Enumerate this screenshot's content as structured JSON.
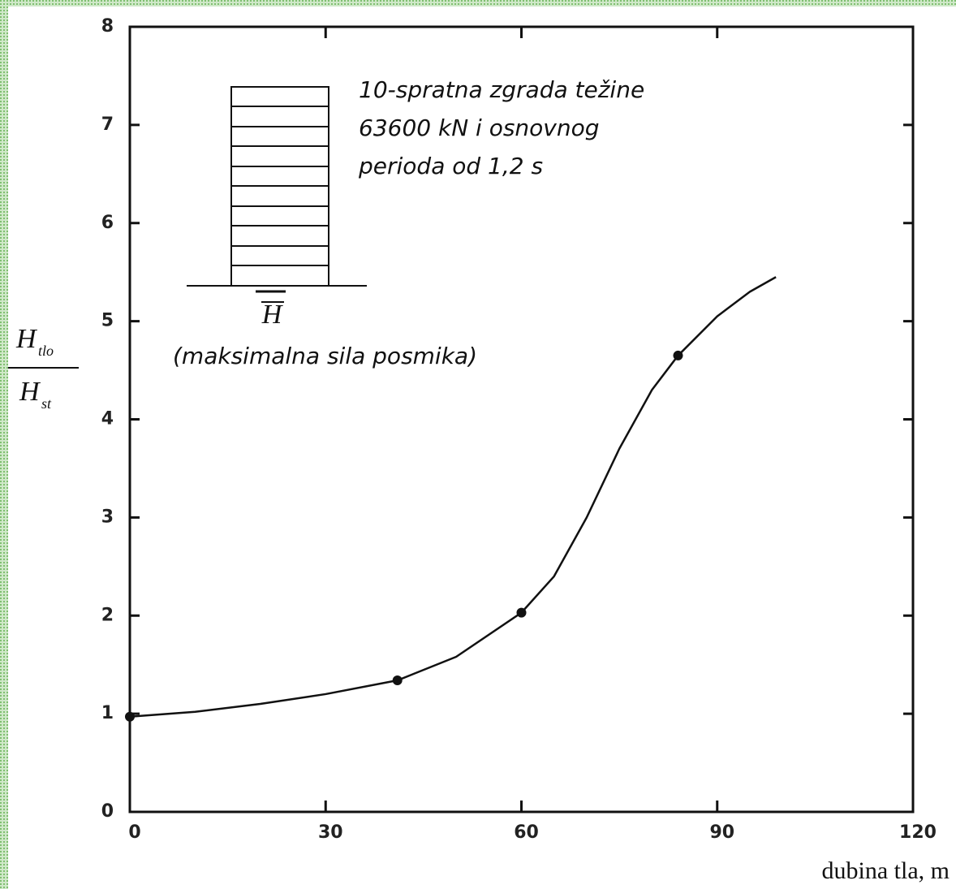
{
  "chart_data": {
    "type": "line",
    "annotation": [
      "10-spratna zgrada težine",
      "63600 kN i osnovnog",
      "perioda od 1,2 s"
    ],
    "figure_label": "H",
    "figure_caption": "(maksimalna sila posmika)",
    "ylabel": {
      "numerator": "H",
      "numerator_sub": "tlo",
      "denominator": "H",
      "denominator_sub": "st"
    },
    "xlabel": "dubina tla, m",
    "xlim": [
      0,
      120
    ],
    "xticks": [
      0,
      30,
      60,
      90,
      120
    ],
    "ylim": [
      0,
      8
    ],
    "yticks": [
      0,
      1,
      2,
      3,
      4,
      5,
      6,
      7,
      8
    ],
    "color": "#111111",
    "series": [
      {
        "style": "line",
        "x": [
          0,
          10,
          20,
          30,
          41,
          50,
          60,
          65,
          70,
          75,
          80,
          84,
          90,
          95,
          99
        ],
        "values": [
          0.97,
          1.02,
          1.1,
          1.2,
          1.34,
          1.58,
          2.03,
          2.4,
          3.0,
          3.7,
          4.3,
          4.65,
          5.05,
          5.3,
          5.45
        ]
      },
      {
        "style": "markers",
        "x": [
          0,
          41,
          60,
          84
        ],
        "values": [
          0.97,
          1.34,
          2.03,
          4.65
        ]
      }
    ]
  }
}
